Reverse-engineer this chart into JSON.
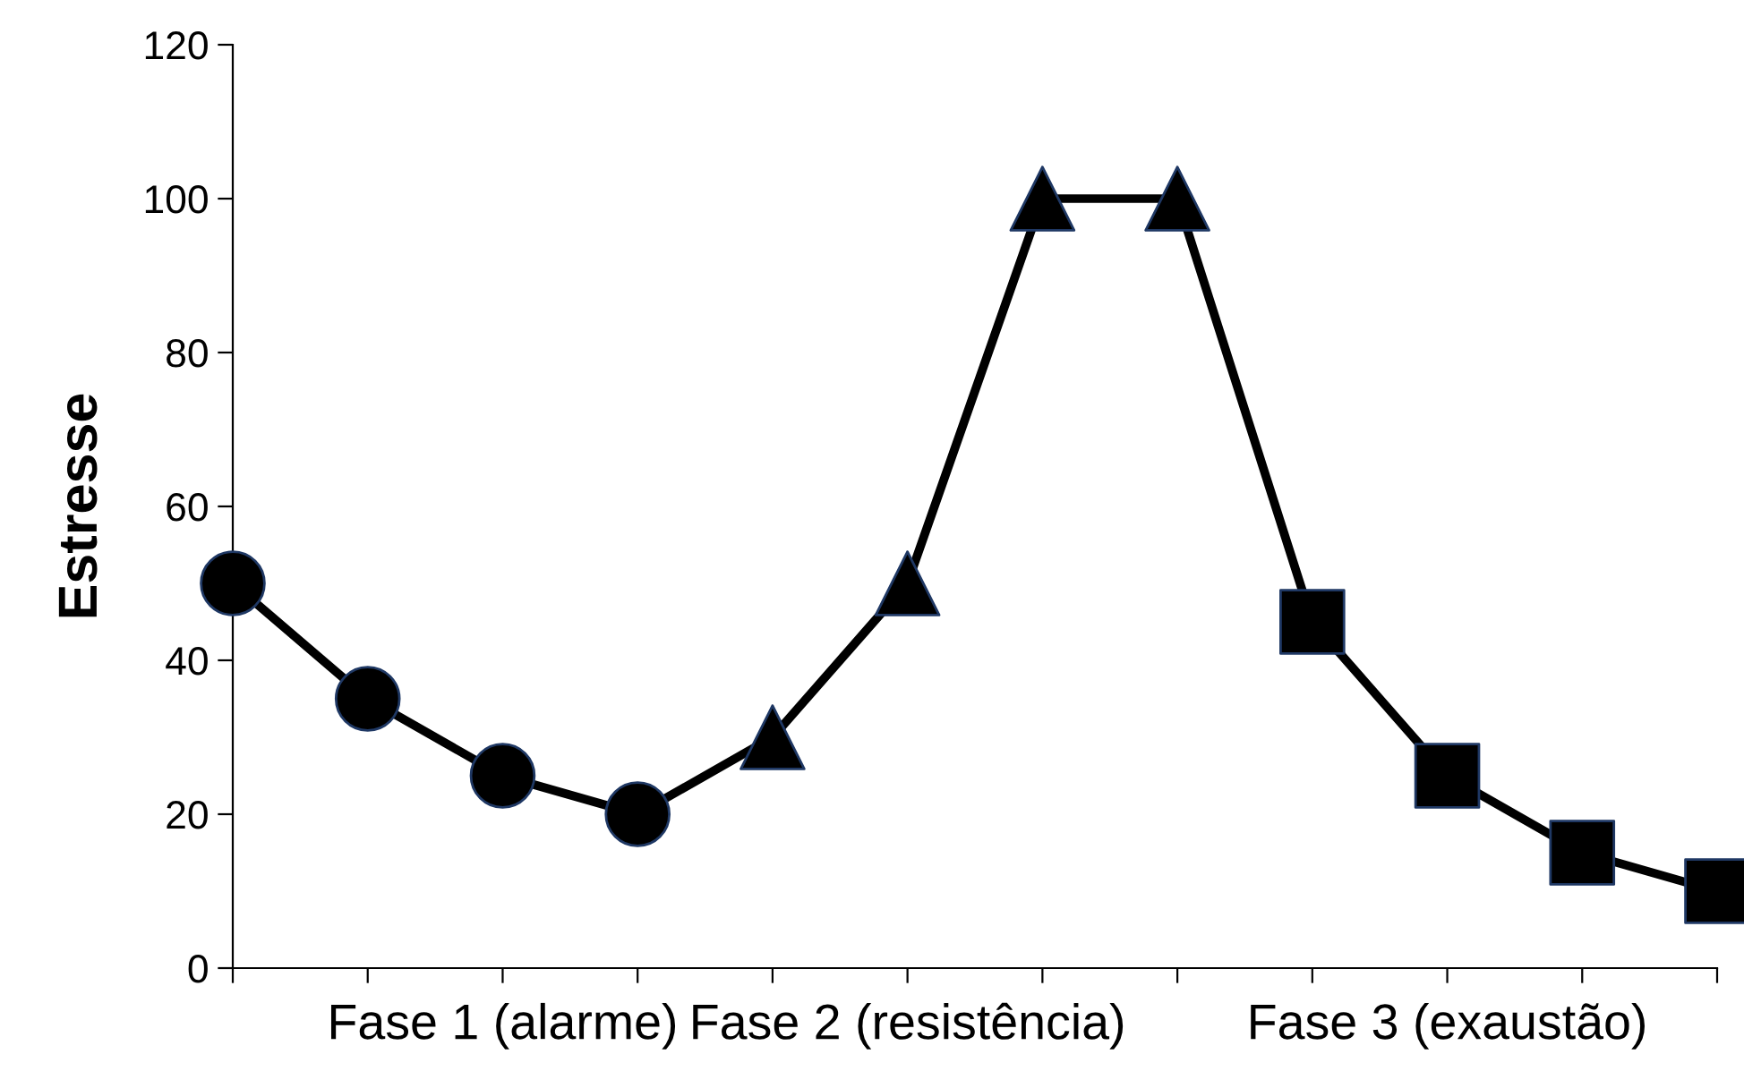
{
  "chart_data": {
    "type": "line",
    "ylabel": "Estresse",
    "categories": [
      null,
      null,
      "Fase 1 (alarme)",
      null,
      null,
      "Fase 2 (resistência)",
      null,
      null,
      null,
      "Fase 3 (exaustão)",
      null,
      null
    ],
    "ylim": [
      0,
      120
    ],
    "yticks": [
      0,
      20,
      40,
      60,
      80,
      100,
      120
    ],
    "grid": false,
    "legend": false,
    "series": [
      {
        "type": "line",
        "color": "#000000",
        "marker": "none",
        "line_style": "solid",
        "values": [
          50,
          35,
          25,
          20,
          30,
          50,
          100,
          100,
          45,
          25,
          15,
          10
        ]
      },
      {
        "type": "scatter",
        "color": "#000000",
        "marker": "circle",
        "values": [
          50,
          35,
          25,
          20,
          null,
          null,
          null,
          null,
          null,
          null,
          null,
          null
        ]
      },
      {
        "type": "scatter",
        "color": "#000000",
        "marker": "triangle",
        "values": [
          null,
          null,
          null,
          null,
          30,
          50,
          100,
          100,
          null,
          null,
          null,
          null
        ]
      },
      {
        "type": "scatter",
        "color": "#000000",
        "marker": "square",
        "values": [
          null,
          null,
          null,
          null,
          null,
          null,
          null,
          null,
          45,
          25,
          15,
          10
        ]
      }
    ]
  }
}
